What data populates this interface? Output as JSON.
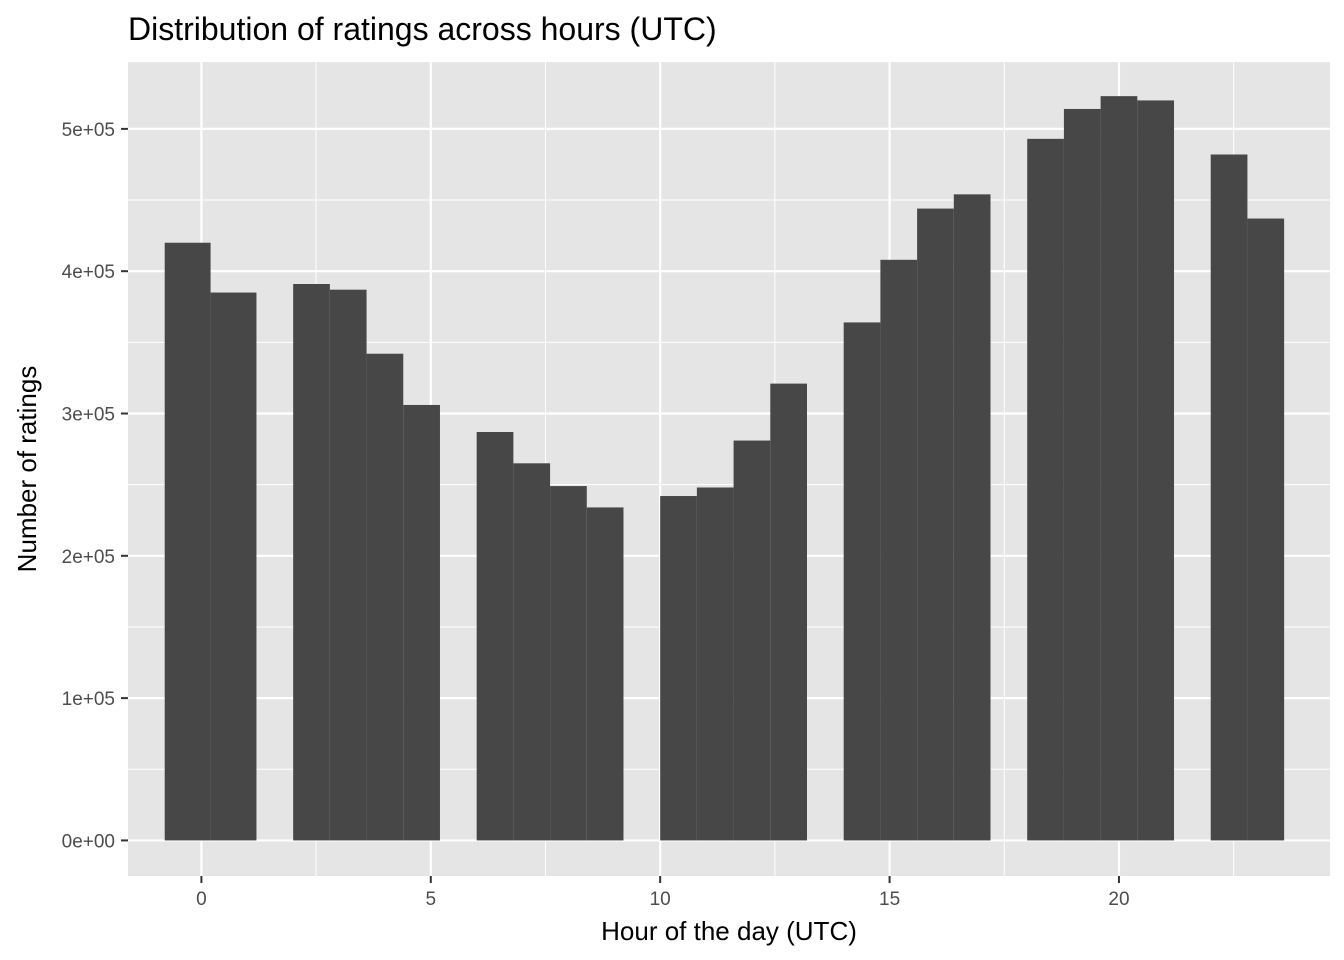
{
  "chart_data": {
    "type": "bar",
    "title": "Distribution of ratings across hours (UTC)",
    "xlabel": "Hour of the day (UTC)",
    "ylabel": "Number of ratings",
    "xlim": [
      -1.6,
      24.6
    ],
    "ylim": [
      -25000,
      547000
    ],
    "x_ticks": [
      0,
      5,
      10,
      15,
      20
    ],
    "x_tick_labels": [
      "0",
      "5",
      "10",
      "15",
      "20"
    ],
    "y_ticks": [
      0,
      100000,
      200000,
      300000,
      400000,
      500000
    ],
    "y_tick_labels": [
      "0e+00",
      "1e+05",
      "2e+05",
      "3e+05",
      "4e+05",
      "5e+05"
    ],
    "grid": true,
    "bar_color": "#474747",
    "panel_background": "#e5e5e5",
    "gridline_color": "#ffffff",
    "bins": [
      {
        "start": -0.8,
        "end": 0.2,
        "value": 420000
      },
      {
        "start": 0.2,
        "end": 1.2,
        "value": 385000
      },
      {
        "start": 1.2,
        "end": 2.0,
        "value": 0
      },
      {
        "start": 2.0,
        "end": 2.8,
        "value": 391000
      },
      {
        "start": 2.8,
        "end": 3.6,
        "value": 387000
      },
      {
        "start": 3.6,
        "end": 4.4,
        "value": 342000
      },
      {
        "start": 4.4,
        "end": 5.2,
        "value": 306000
      },
      {
        "start": 5.2,
        "end": 6.0,
        "value": 0
      },
      {
        "start": 6.0,
        "end": 6.8,
        "value": 287000
      },
      {
        "start": 6.8,
        "end": 7.6,
        "value": 265000
      },
      {
        "start": 7.6,
        "end": 8.4,
        "value": 249000
      },
      {
        "start": 8.4,
        "end": 9.2,
        "value": 234000
      },
      {
        "start": 9.2,
        "end": 10.0,
        "value": 0
      },
      {
        "start": 10.0,
        "end": 10.8,
        "value": 242000
      },
      {
        "start": 10.8,
        "end": 11.6,
        "value": 248000
      },
      {
        "start": 11.6,
        "end": 12.4,
        "value": 281000
      },
      {
        "start": 12.4,
        "end": 13.2,
        "value": 321000
      },
      {
        "start": 13.2,
        "end": 14.0,
        "value": 0
      },
      {
        "start": 14.0,
        "end": 14.8,
        "value": 364000
      },
      {
        "start": 14.8,
        "end": 15.6,
        "value": 408000
      },
      {
        "start": 15.6,
        "end": 16.4,
        "value": 444000
      },
      {
        "start": 16.4,
        "end": 17.2,
        "value": 454000
      },
      {
        "start": 17.2,
        "end": 18.0,
        "value": 0
      },
      {
        "start": 18.0,
        "end": 18.8,
        "value": 493000
      },
      {
        "start": 18.8,
        "end": 19.6,
        "value": 514000
      },
      {
        "start": 19.6,
        "end": 20.4,
        "value": 523000
      },
      {
        "start": 20.4,
        "end": 21.2,
        "value": 520000
      },
      {
        "start": 21.2,
        "end": 22.0,
        "value": 0
      },
      {
        "start": 22.0,
        "end": 22.8,
        "value": 482000
      },
      {
        "start": 22.8,
        "end": 23.6,
        "value": 437000
      }
    ]
  }
}
